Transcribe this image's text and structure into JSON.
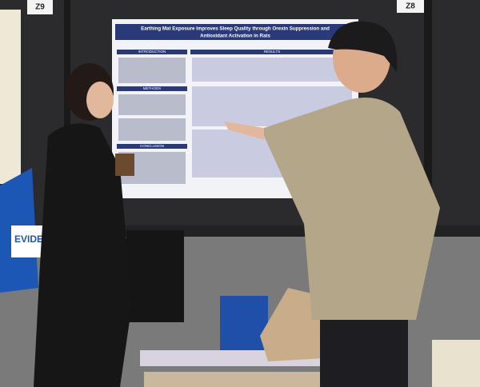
{
  "booth_signs": [
    "Z9",
    "Z8"
  ],
  "poster": {
    "title_lines": [
      "Earthing Mat Exposure Improves Sleep Quality through Orexin Suppression and",
      "Antioxidant Activation in Rats"
    ],
    "sections": [
      "INTRODUCTION",
      "RESULTS",
      "METHODS",
      "CONCLUSION"
    ]
  },
  "bag_text": "EVIDE"
}
